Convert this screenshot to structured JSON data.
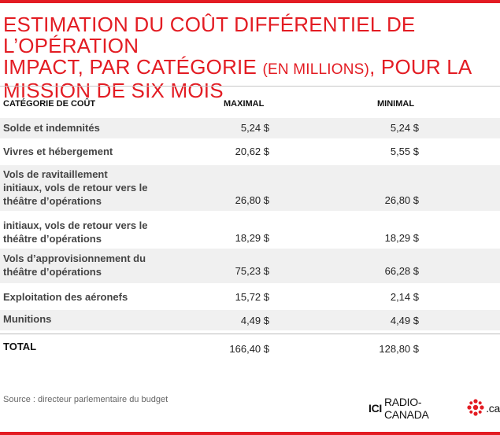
{
  "title": {
    "line1": "Estimation du coût différentiel de l’opération",
    "line2_a": "Impact, par catégorie ",
    "line2_small": "(en millions)",
    "line2_b": ", pour la",
    "line3": "mission de six mois"
  },
  "table": {
    "headers": {
      "category": "CATÉGORIE DE COÛT",
      "max": "MAXIMAL",
      "min": "MINIMAL"
    },
    "rows": [
      {
        "label": "Solde et indemnités",
        "max": "5,24 $",
        "min": "5,24 $"
      },
      {
        "label": "Vivres et hébergement",
        "max": "20,62 $",
        "min": "5,55 $"
      },
      {
        "label_lines": [
          "Vols de ravitaillement",
          "initiaux, vols de retour vers le",
          "théâtre d’opérations"
        ],
        "max": "26,80 $",
        "min": "26,80 $"
      },
      {
        "label_lines": [
          "initiaux, vols de retour vers le",
          "théâtre d’opérations"
        ],
        "max": "18,29 $",
        "min": "18,29 $"
      },
      {
        "label_lines": [
          "Vols d’approvisionnement du",
          "théâtre d’opérations"
        ],
        "max": "75,23 $",
        "min": "66,28 $"
      },
      {
        "label": "Exploitation des aéronefs",
        "max": "15,72 $",
        "min": "2,14 $"
      },
      {
        "label": "Munitions",
        "max": "4,49 $",
        "min": "4,49 $"
      }
    ],
    "total": {
      "label": "TOTAL",
      "max": "166,40 $",
      "min": "128,80 $"
    }
  },
  "source": "Source :  directeur parlementaire du budget",
  "logo": {
    "ici": "ICI",
    "name": "RADIO-CANADA",
    "suffix": ".ca",
    "icon": "radio-canada-gem-icon"
  },
  "colors": {
    "accent": "#e31c23",
    "shade": "#f0f0f0"
  }
}
